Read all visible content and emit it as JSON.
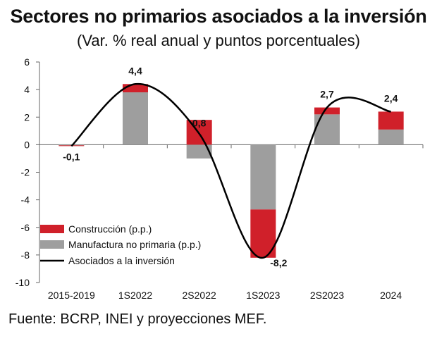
{
  "chart_data": {
    "type": "bar",
    "title": "Sectores no primarios asociados a la inversión",
    "subtitle": "(Var. % real anual y puntos porcentuales)",
    "categories": [
      "2015-2019",
      "1S2022",
      "2S2022",
      "1S2023",
      "2S2023",
      "2024"
    ],
    "series": [
      {
        "name": "Construcción (p.p.)",
        "kind": "stacked-bar",
        "color": "#d0202a",
        "values": [
          -0.05,
          0.6,
          1.8,
          -3.5,
          0.5,
          1.3
        ]
      },
      {
        "name": "Manufactura no primaria (p.p.)",
        "kind": "stacked-bar",
        "color": "#9e9e9e",
        "values": [
          -0.05,
          3.8,
          -1.0,
          -4.7,
          2.2,
          1.1
        ]
      },
      {
        "name": "Asociados a la inversión",
        "kind": "line",
        "color": "#000000",
        "values": [
          -0.1,
          4.4,
          0.8,
          -8.2,
          2.7,
          2.4
        ]
      }
    ],
    "data_labels": [
      "-0,1",
      "4,4",
      "0,8",
      "-8,2",
      "2,7",
      "2,4"
    ],
    "ylim": [
      -10,
      6
    ],
    "yticks": [
      6,
      4,
      2,
      0,
      -2,
      -4,
      -6,
      -8,
      -10
    ],
    "legend_position": "bottom-left"
  },
  "source": "Fuente: BCRP, INEI y proyecciones MEF."
}
